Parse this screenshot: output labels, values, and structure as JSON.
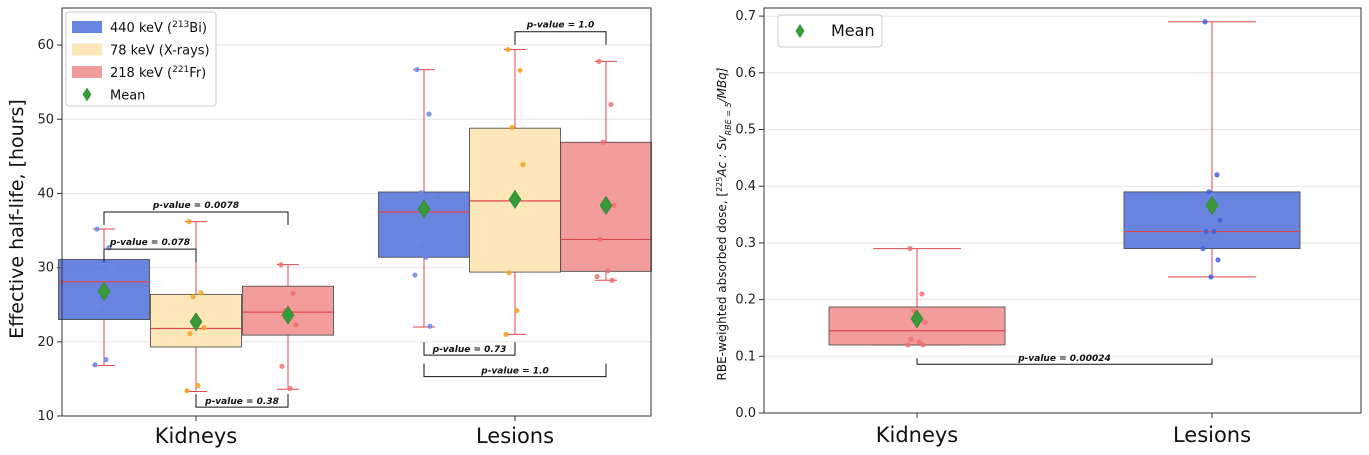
{
  "colors": {
    "bi": "#4f6fd8",
    "xray": "#fde7b8",
    "fr": "#f08b8b",
    "median": "#e0484f",
    "whisker": "#e0484f",
    "mean": "#3a9a3a",
    "grid": "#e6e6e6"
  },
  "chart_data": [
    {
      "type": "box",
      "ylabel": "Effective half-life, [hours]",
      "ylim": [
        10,
        65
      ],
      "yticks": [
        10,
        20,
        30,
        40,
        50,
        60
      ],
      "categories": [
        "Kidneys",
        "Lesions"
      ],
      "legend": {
        "placement": "top-left",
        "entries": [
          {
            "label": "440 keV (",
            "sup": "213",
            "suffix": "Bi)",
            "color_key": "bi",
            "marker": "box"
          },
          {
            "label": "78 keV (X-rays)",
            "sup": "",
            "suffix": "",
            "color_key": "xray",
            "marker": "box"
          },
          {
            "label": "218 keV (",
            "sup": "221",
            "suffix": "Fr)",
            "color_key": "fr",
            "marker": "box"
          },
          {
            "label": "Mean",
            "sup": "",
            "suffix": "",
            "color_key": "mean",
            "marker": "diamond"
          }
        ]
      },
      "series": [
        {
          "name": "440 keV (213Bi)",
          "color_key": "bi",
          "boxes": [
            {
              "category": "Kidneys",
              "min": 16.8,
              "q1": 23.0,
              "median": 28.1,
              "q3": 31.1,
              "max": 35.2,
              "mean": 26.8,
              "points": [
                35.2,
                32.7,
                30.5,
                29.8,
                24.8,
                17.6,
                16.9
              ]
            },
            {
              "category": "Lesions",
              "min": 22.0,
              "q1": 31.4,
              "median": 37.5,
              "q3": 40.2,
              "max": 56.7,
              "mean": 37.9,
              "points": [
                56.7,
                50.7,
                40.1,
                39.5,
                33.5,
                31.4,
                29.0,
                22.1
              ]
            }
          ]
        },
        {
          "name": "78 keV (X-rays)",
          "color_key": "xray",
          "boxes": [
            {
              "category": "Kidneys",
              "min": 13.3,
              "q1": 19.3,
              "median": 21.8,
              "q3": 26.4,
              "max": 36.2,
              "mean": 22.7,
              "points": [
                36.2,
                26.6,
                26.1,
                21.9,
                21.1,
                14.1,
                13.4
              ]
            },
            {
              "category": "Lesions",
              "min": 21.0,
              "q1": 29.4,
              "median": 39.0,
              "q3": 48.8,
              "max": 59.4,
              "mean": 39.2,
              "points": [
                59.4,
                56.6,
                48.9,
                43.9,
                29.3,
                24.2,
                21.0
              ]
            }
          ]
        },
        {
          "name": "218 keV (221Fr)",
          "color_key": "fr",
          "boxes": [
            {
              "category": "Kidneys",
              "min": 13.6,
              "q1": 20.9,
              "median": 24.0,
              "q3": 27.5,
              "max": 30.4,
              "mean": 23.6,
              "points": [
                30.4,
                26.5,
                24.2,
                22.3,
                16.7,
                13.7
              ]
            },
            {
              "category": "Lesions",
              "min": 28.3,
              "q1": 29.5,
              "median": 33.8,
              "q3": 46.9,
              "max": 57.8,
              "mean": 38.4,
              "points": [
                57.8,
                52.0,
                46.9,
                38.4,
                33.8,
                29.6,
                28.8,
                28.3
              ]
            }
          ]
        }
      ],
      "annotations": [
        {
          "text": "p-value = 0.0078",
          "category": "Kidneys",
          "from": 0,
          "to": 2,
          "y": 37.5,
          "dir": "down"
        },
        {
          "text": "p-value = 0.078",
          "category": "Kidneys",
          "from": 0,
          "to": 1,
          "y": 32.5,
          "dir": "down"
        },
        {
          "text": "p-value = 0.38",
          "category": "Kidneys",
          "from": 1,
          "to": 2,
          "y": 11.2,
          "dir": "up"
        },
        {
          "text": "p-value = 1.0",
          "category": "Lesions",
          "from": 1,
          "to": 2,
          "y": 61.8,
          "dir": "down"
        },
        {
          "text": "p-value = 0.73",
          "category": "Lesions",
          "from": 0,
          "to": 1,
          "y": 18.2,
          "dir": "up"
        },
        {
          "text": "p-value = 1.0",
          "category": "Lesions",
          "from": 0,
          "to": 2,
          "y": 15.3,
          "dir": "up"
        }
      ]
    },
    {
      "type": "box",
      "ylabel_parts": {
        "pre": "RBE-weighted absorbed dose, [",
        "sup": "225",
        "main": "Ac : Sv",
        "sub": "RBE = 5",
        "post": "/MBq]"
      },
      "ylim": [
        0.0,
        0.7
      ],
      "yticks": [
        0.0,
        0.1,
        0.2,
        0.3,
        0.4,
        0.5,
        0.6,
        0.7
      ],
      "categories": [
        "Kidneys",
        "Lesions"
      ],
      "legend": {
        "placement": "top-left",
        "entries": [
          {
            "label": "Mean",
            "color_key": "mean",
            "marker": "diamond"
          }
        ]
      },
      "series": [
        {
          "name": "",
          "boxes": [
            {
              "category": "Kidneys",
              "color_key": "fr",
              "min": 0.12,
              "q1": 0.12,
              "median": 0.145,
              "q3": 0.187,
              "max": 0.29,
              "mean": 0.166,
              "points": [
                0.29,
                0.21,
                0.18,
                0.16,
                0.13,
                0.125,
                0.12,
                0.12
              ]
            },
            {
              "category": "Lesions",
              "color_key": "bi",
              "min": 0.24,
              "q1": 0.29,
              "median": 0.32,
              "q3": 0.39,
              "max": 0.69,
              "mean": 0.366,
              "points": [
                0.69,
                0.42,
                0.39,
                0.34,
                0.32,
                0.32,
                0.29,
                0.27,
                0.24
              ]
            }
          ]
        }
      ],
      "annotations": [
        {
          "text": "p-value = 0.00024",
          "from_category": "Kidneys",
          "to_category": "Lesions",
          "y": 0.086,
          "dir": "up"
        }
      ]
    }
  ]
}
